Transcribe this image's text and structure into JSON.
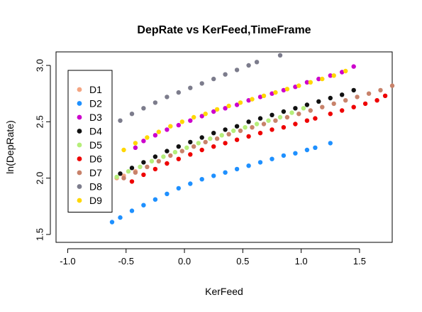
{
  "chart_data": {
    "type": "scatter",
    "title": "DepRate vs KerFeed,TimeFrame",
    "xlabel": "KerFeed",
    "ylabel": "ln(DepRate)",
    "xlim": [
      -1.1,
      1.78
    ],
    "ylim": [
      1.43,
      3.12
    ],
    "xticks": [
      -1.0,
      -0.5,
      0.0,
      0.5,
      1.0,
      1.5
    ],
    "xtick_labels": [
      "-1.0",
      "-0.5",
      "0.0",
      "0.5",
      "1.0",
      "1.5"
    ],
    "yticks": [
      1.5,
      2.0,
      2.5,
      3.0
    ],
    "ytick_labels": [
      "1.5",
      "2.0",
      "2.5",
      "3.0"
    ],
    "grid": false,
    "legend_position": "top-left",
    "series": [
      {
        "name": "D1",
        "color": "#F4A582",
        "x": [
          -0.58,
          -0.52,
          -0.42
        ],
        "y": [
          2.0,
          2.02,
          2.06
        ]
      },
      {
        "name": "D2",
        "color": "#1E90FF",
        "x": [
          -0.62,
          -0.55,
          -0.45,
          -0.35,
          -0.25,
          -0.15,
          -0.05,
          0.05,
          0.15,
          0.25,
          0.35,
          0.45,
          0.55,
          0.65,
          0.75,
          0.85,
          0.95,
          1.05,
          1.12,
          1.25
        ],
        "y": [
          1.61,
          1.65,
          1.71,
          1.76,
          1.81,
          1.86,
          1.91,
          1.95,
          1.99,
          2.02,
          2.05,
          2.08,
          2.11,
          2.14,
          2.17,
          2.2,
          2.22,
          2.25,
          2.27,
          2.31
        ]
      },
      {
        "name": "D3",
        "color": "#CC00CC",
        "x": [
          -0.42,
          -0.35,
          -0.25,
          -0.15,
          -0.05,
          0.05,
          0.15,
          0.25,
          0.35,
          0.45,
          0.55,
          0.65,
          0.75,
          0.85,
          0.95,
          1.05,
          1.15,
          1.25,
          1.35,
          1.45
        ],
        "y": [
          2.27,
          2.33,
          2.38,
          2.43,
          2.47,
          2.51,
          2.55,
          2.59,
          2.62,
          2.65,
          2.69,
          2.72,
          2.75,
          2.78,
          2.81,
          2.85,
          2.88,
          2.91,
          2.94,
          2.99
        ]
      },
      {
        "name": "D4",
        "color": "#111111",
        "x": [
          -0.55,
          -0.45,
          -0.35,
          -0.25,
          -0.15,
          -0.05,
          0.05,
          0.15,
          0.25,
          0.35,
          0.45,
          0.55,
          0.65,
          0.75,
          0.85,
          0.95,
          1.05,
          1.15,
          1.25,
          1.35,
          1.45
        ],
        "y": [
          2.04,
          2.09,
          2.14,
          2.19,
          2.24,
          2.28,
          2.32,
          2.36,
          2.4,
          2.43,
          2.46,
          2.5,
          2.53,
          2.56,
          2.59,
          2.62,
          2.65,
          2.68,
          2.71,
          2.74,
          2.78
        ]
      },
      {
        "name": "D5",
        "color": "#B5EE7A",
        "x": [
          -0.58,
          -0.48,
          -0.38,
          -0.28,
          -0.18,
          -0.08,
          0.02,
          0.12,
          0.22,
          0.32,
          0.42,
          0.52,
          0.62,
          0.72,
          0.82,
          0.92,
          1.02
        ],
        "y": [
          2.01,
          2.06,
          2.1,
          2.15,
          2.19,
          2.23,
          2.27,
          2.31,
          2.35,
          2.38,
          2.42,
          2.45,
          2.48,
          2.51,
          2.54,
          2.58,
          2.62
        ]
      },
      {
        "name": "D6",
        "color": "#EE0000",
        "x": [
          -0.45,
          -0.35,
          -0.25,
          -0.15,
          -0.05,
          0.05,
          0.15,
          0.25,
          0.35,
          0.45,
          0.55,
          0.65,
          0.75,
          0.85,
          0.95,
          1.05,
          1.12,
          1.25,
          1.35,
          1.45,
          1.55,
          1.65,
          1.72
        ],
        "y": [
          1.97,
          2.03,
          2.08,
          2.13,
          2.17,
          2.21,
          2.25,
          2.28,
          2.31,
          2.34,
          2.37,
          2.4,
          2.43,
          2.45,
          2.48,
          2.51,
          2.53,
          2.57,
          2.6,
          2.63,
          2.66,
          2.69,
          2.73
        ]
      },
      {
        "name": "D7",
        "color": "#C8826A",
        "x": [
          -0.52,
          -0.42,
          -0.32,
          -0.22,
          -0.12,
          -0.02,
          0.08,
          0.18,
          0.28,
          0.38,
          0.48,
          0.58,
          0.68,
          0.78,
          0.88,
          0.98,
          1.08,
          1.18,
          1.28,
          1.38,
          1.48,
          1.58,
          1.68,
          1.78
        ],
        "y": [
          2.0,
          2.05,
          2.1,
          2.15,
          2.2,
          2.24,
          2.28,
          2.32,
          2.35,
          2.39,
          2.42,
          2.45,
          2.48,
          2.51,
          2.54,
          2.57,
          2.6,
          2.63,
          2.66,
          2.69,
          2.72,
          2.75,
          2.78,
          2.82
        ]
      },
      {
        "name": "D8",
        "color": "#7C7C8C",
        "x": [
          -0.55,
          -0.45,
          -0.35,
          -0.25,
          -0.15,
          -0.05,
          0.05,
          0.15,
          0.25,
          0.35,
          0.45,
          0.55,
          0.62,
          0.82
        ],
        "y": [
          2.51,
          2.57,
          2.62,
          2.67,
          2.72,
          2.76,
          2.8,
          2.84,
          2.88,
          2.92,
          2.96,
          3.0,
          3.03,
          3.09
        ]
      },
      {
        "name": "D9",
        "color": "#FFD700",
        "x": [
          -0.52,
          -0.42,
          -0.32,
          -0.22,
          -0.12,
          -0.02,
          0.08,
          0.18,
          0.28,
          0.38,
          0.48,
          0.58,
          0.68,
          0.78,
          0.88,
          0.98,
          1.08,
          1.18,
          1.28,
          1.38
        ],
        "y": [
          2.25,
          2.31,
          2.36,
          2.41,
          2.46,
          2.5,
          2.54,
          2.57,
          2.61,
          2.64,
          2.67,
          2.7,
          2.73,
          2.76,
          2.79,
          2.82,
          2.85,
          2.88,
          2.91,
          2.95
        ]
      }
    ]
  }
}
